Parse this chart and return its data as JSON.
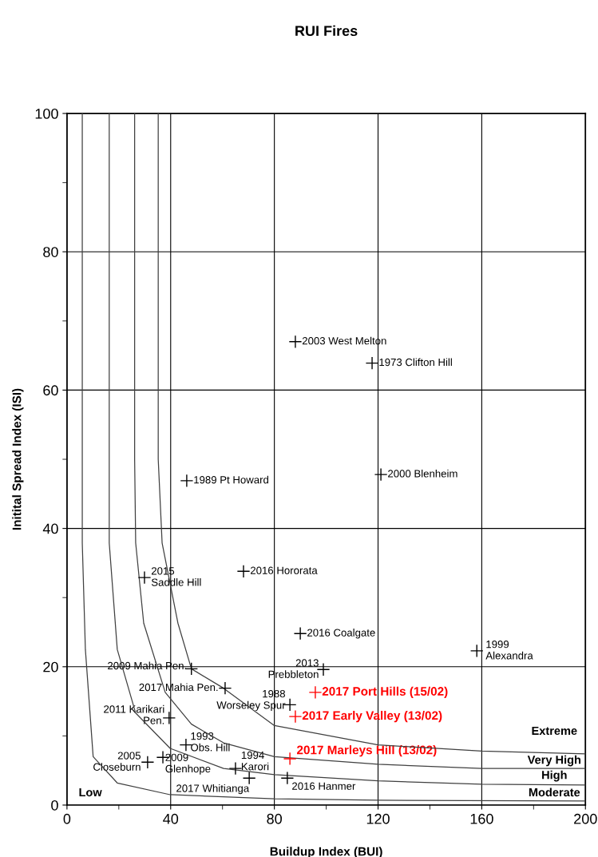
{
  "chart_data": {
    "type": "scatter",
    "title": "RUI Fires",
    "xlabel": "Buildup Index (BUI)",
    "ylabel": "Initital Spread Index (ISI)",
    "xlim": [
      0,
      200
    ],
    "ylim": [
      0,
      100
    ],
    "xticks": [
      0,
      {
        "value": 20,
        "label": null
      },
      40,
      {
        "value": 60,
        "label": null
      },
      80,
      {
        "value": 100,
        "label": null
      },
      120,
      {
        "value": 140,
        "label": null
      },
      160,
      {
        "value": 180,
        "label": null
      },
      200
    ],
    "yticks": [
      0,
      {
        "value": 10,
        "label": null
      },
      20,
      {
        "value": 30,
        "label": null
      },
      40,
      {
        "value": 50,
        "label": null
      },
      60,
      {
        "value": 70,
        "label": null
      },
      80,
      {
        "value": 90,
        "label": null
      },
      100
    ],
    "grid": true,
    "legend": false,
    "marker": "cross",
    "series": [
      {
        "name": "2003 West Melton",
        "color": "#000000",
        "x": [
          88.1
        ],
        "values": [
          67.0
        ]
      },
      {
        "name": "1973 Clifton Hill",
        "color": "#000000",
        "x": [
          117.7
        ],
        "values": [
          63.9
        ]
      },
      {
        "name": "2000 Blenheim",
        "color": "#000000",
        "x": [
          121.1
        ],
        "values": [
          47.8
        ]
      },
      {
        "name": "1989 Pt Howard",
        "color": "#000000",
        "x": [
          46.2
        ],
        "values": [
          46.9
        ]
      },
      {
        "name": "2015\nSaddle Hill",
        "color": "#000000",
        "x": [
          29.9
        ],
        "values": [
          32.9
        ]
      },
      {
        "name": "2016 Hororata",
        "color": "#000000",
        "x": [
          68.1
        ],
        "values": [
          33.8
        ]
      },
      {
        "name": "2016 Coalgate",
        "color": "#000000",
        "x": [
          90.0
        ],
        "values": [
          24.8
        ]
      },
      {
        "name": "1999\nAlexandra",
        "color": "#000000",
        "x": [
          158.1
        ],
        "values": [
          22.3
        ]
      },
      {
        "name": "2009 Mahia Pen.",
        "color": "#000000",
        "x": [
          48.0
        ],
        "values": [
          19.7
        ]
      },
      {
        "name": "2013\nPrebbleton",
        "color": "#000000",
        "x": [
          98.9
        ],
        "values": [
          19.6
        ]
      },
      {
        "name": "2017 Mahia Pen.",
        "color": "#000000",
        "x": [
          61.0
        ],
        "values": [
          16.9
        ]
      },
      {
        "name": "1988\nWorseley Spur",
        "color": "#000000",
        "x": [
          86.0
        ],
        "values": [
          14.5
        ]
      },
      {
        "name": "2011 Karikari\nPen.",
        "color": "#000000",
        "x": [
          39.4
        ],
        "values": [
          12.6
        ]
      },
      {
        "name": "1993\nObs. Hill",
        "color": "#000000",
        "x": [
          45.9
        ],
        "values": [
          8.7
        ]
      },
      {
        "name": "2005\nCloseburn",
        "color": "#000000",
        "x": [
          31.1
        ],
        "values": [
          6.2
        ]
      },
      {
        "name": "2009\nGlenhope",
        "color": "#000000",
        "x": [
          37.0
        ],
        "values": [
          6.9
        ]
      },
      {
        "name": "1994\nKarori",
        "color": "#000000",
        "x": [
          65.0
        ],
        "values": [
          5.3
        ]
      },
      {
        "name": "2017 Whitianga",
        "color": "#000000",
        "x": [
          70.3
        ],
        "values": [
          3.9
        ]
      },
      {
        "name": "2016 Hanmer",
        "color": "#000000",
        "x": [
          85.0
        ],
        "values": [
          3.9
        ]
      },
      {
        "name": "2017 Port Hills (15/02)",
        "color": "#ff0000",
        "x": [
          95.8
        ],
        "values": [
          16.3
        ]
      },
      {
        "name": "2017 Early Valley (13/02)",
        "color": "#ff0000",
        "x": [
          88.1
        ],
        "values": [
          12.8
        ]
      },
      {
        "name": "2017 Marleys Hill (13/02)",
        "color": "#ff0000",
        "x": [
          86.0
        ],
        "values": [
          6.7
        ]
      },
      {
        "type": "line",
        "color": "#404040",
        "marker": "none",
        "x": [
          5.9,
          5.9,
          7.1,
          10.1,
          19.4,
          39.8,
          80,
          120,
          200
        ],
        "values": [
          100,
          37.9,
          22.5,
          7.0,
          3.2,
          1.5,
          0.9,
          0.7,
          0.6
        ]
      },
      {
        "type": "line",
        "color": "#404040",
        "marker": "none",
        "x": [
          16.3,
          16.3,
          19.4,
          26.5,
          39.8,
          60.4,
          80,
          120,
          160,
          200
        ],
        "values": [
          100,
          37.9,
          22.5,
          13.3,
          8.2,
          5.3,
          4.4,
          3.5,
          3.0,
          2.9
        ]
      },
      {
        "type": "line",
        "color": "#404040",
        "marker": "none",
        "x": [
          26.1,
          26.1,
          26.5,
          29.6,
          37.9,
          48,
          60.4,
          80,
          120,
          160,
          200
        ],
        "values": [
          100,
          50,
          37.9,
          26.3,
          16.3,
          11.7,
          9.0,
          7.0,
          5.9,
          5.3,
          5.3
        ]
      },
      {
        "type": "line",
        "color": "#404040",
        "marker": "none",
        "x": [
          35.2,
          35.2,
          36.7,
          42.8,
          48,
          60.4,
          80,
          120,
          160,
          200
        ],
        "values": [
          100,
          50,
          37.9,
          26.3,
          19.7,
          16.9,
          11.5,
          8.7,
          7.8,
          7.4
        ]
      }
    ],
    "annotations": [
      "Extreme",
      "Very High",
      "High",
      "Moderate",
      "Low"
    ]
  }
}
